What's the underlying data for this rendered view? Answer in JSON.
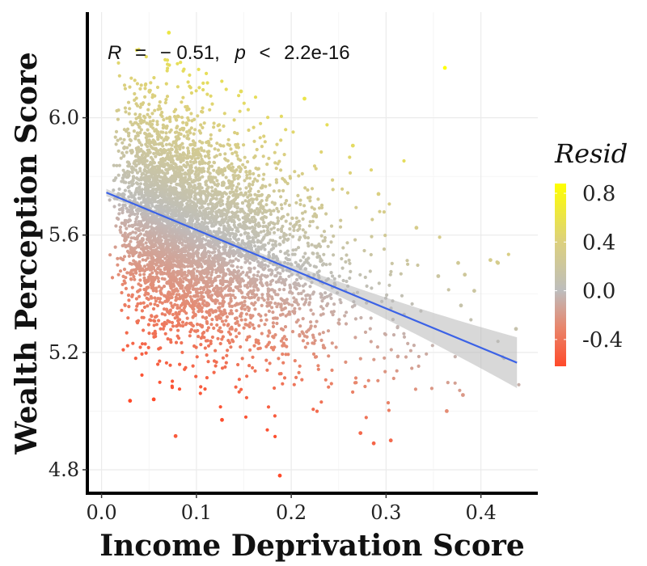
{
  "chart_data": {
    "type": "scatter",
    "xlabel": "Income Deprivation Score",
    "ylabel": "Wealth Perception Score",
    "xlim": [
      -0.015,
      0.46
    ],
    "ylim": [
      4.72,
      6.36
    ],
    "x_ticks": [
      0.0,
      0.1,
      0.2,
      0.3,
      0.4
    ],
    "x_tick_labels": [
      "0.0",
      "0.1",
      "0.2",
      "0.3",
      "0.4"
    ],
    "y_ticks": [
      4.8,
      5.2,
      5.6,
      6.0
    ],
    "y_tick_labels": [
      "4.8",
      "5.2",
      "5.6",
      "6.0"
    ],
    "grid": true,
    "annotation": {
      "r_symbol": "R",
      "equals": "=",
      "r_value": "− 0.51,",
      "p_symbol": "p",
      "less_than": "<",
      "p_value": "2.2e-16"
    },
    "regression_line": {
      "x": [
        0.005,
        0.438
      ],
      "y": [
        5.745,
        5.165
      ],
      "color": "#3b62e6",
      "ribbon_color": "#b8b8b8"
    },
    "color_scale": {
      "name": "Resid",
      "domain": [
        -0.62,
        0.88
      ],
      "stops": [
        {
          "value": -0.62,
          "color": "#ff4a2a"
        },
        {
          "value": -0.3,
          "color": "#e8866c"
        },
        {
          "value": 0.0,
          "color": "#bdbdbd"
        },
        {
          "value": 0.4,
          "color": "#dcd07e"
        },
        {
          "value": 0.88,
          "color": "#ffff00"
        }
      ],
      "breaks": [
        -0.4,
        0.0,
        0.4,
        0.8
      ],
      "break_labels": [
        "-0.4",
        "0.0",
        "0.4",
        "0.8"
      ]
    },
    "n_points": 5000,
    "point_cloud": {
      "x_shape": 2.2,
      "x_scale": 0.048,
      "x_max": 0.44,
      "intercept": 5.752,
      "slope": -1.34,
      "resid_sd": 0.19,
      "resid_clip": [
        -0.6,
        0.55
      ]
    },
    "notable_points": [
      {
        "x": 0.362,
        "y": 6.17,
        "resid": 0.88
      },
      {
        "x": 0.071,
        "y": 6.29,
        "resid": 0.62
      },
      {
        "x": 0.188,
        "y": 4.78,
        "resid": -0.62
      },
      {
        "x": 0.078,
        "y": 4.915,
        "resid": -0.53
      },
      {
        "x": 0.03,
        "y": 5.035,
        "resid": -0.68
      },
      {
        "x": 0.055,
        "y": 5.04,
        "resid": -0.64
      },
      {
        "x": 0.127,
        "y": 4.97,
        "resid": -0.6
      },
      {
        "x": 0.273,
        "y": 4.925,
        "resid": -0.46
      },
      {
        "x": 0.287,
        "y": 4.89,
        "resid": -0.48
      },
      {
        "x": 0.305,
        "y": 4.9,
        "resid": -0.45
      },
      {
        "x": 0.364,
        "y": 5.0,
        "resid": -0.27
      },
      {
        "x": 0.381,
        "y": 5.055,
        "resid": -0.2
      },
      {
        "x": 0.41,
        "y": 5.515,
        "resid": 0.31
      },
      {
        "x": 0.418,
        "y": 5.505,
        "resid": 0.31
      },
      {
        "x": 0.437,
        "y": 5.28,
        "resid": 0.11
      },
      {
        "x": 0.393,
        "y": 5.41,
        "resid": 0.18
      },
      {
        "x": 0.383,
        "y": 5.465,
        "resid": 0.22
      },
      {
        "x": 0.379,
        "y": 5.36,
        "resid": 0.12
      },
      {
        "x": 0.376,
        "y": 5.505,
        "resid": 0.25
      },
      {
        "x": 0.355,
        "y": 5.46,
        "resid": 0.18
      },
      {
        "x": 0.332,
        "y": 5.625,
        "resid": 0.32
      },
      {
        "x": 0.292,
        "y": 5.74,
        "resid": 0.38
      },
      {
        "x": 0.265,
        "y": 5.905,
        "resid": 0.51
      },
      {
        "x": 0.214,
        "y": 6.065,
        "resid": 0.6
      },
      {
        "x": 0.147,
        "y": 6.09,
        "resid": 0.53
      }
    ]
  }
}
